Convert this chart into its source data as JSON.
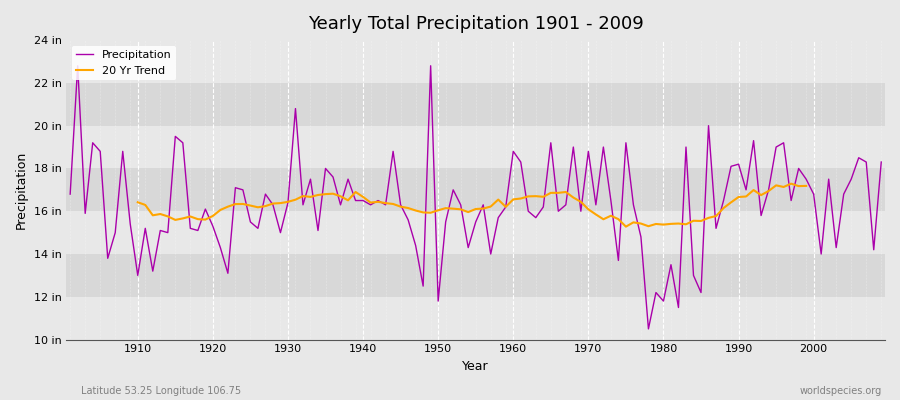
{
  "title": "Yearly Total Precipitation 1901 - 2009",
  "xlabel": "Year",
  "ylabel": "Precipitation",
  "years": [
    1901,
    1902,
    1903,
    1904,
    1905,
    1906,
    1907,
    1908,
    1909,
    1910,
    1911,
    1912,
    1913,
    1914,
    1915,
    1916,
    1917,
    1918,
    1919,
    1920,
    1921,
    1922,
    1923,
    1924,
    1925,
    1926,
    1927,
    1928,
    1929,
    1930,
    1931,
    1932,
    1933,
    1934,
    1935,
    1936,
    1937,
    1938,
    1939,
    1940,
    1941,
    1942,
    1943,
    1944,
    1945,
    1946,
    1947,
    1948,
    1949,
    1950,
    1951,
    1952,
    1953,
    1954,
    1955,
    1956,
    1957,
    1958,
    1959,
    1960,
    1961,
    1962,
    1963,
    1964,
    1965,
    1966,
    1967,
    1968,
    1969,
    1970,
    1971,
    1972,
    1973,
    1974,
    1975,
    1976,
    1977,
    1978,
    1979,
    1980,
    1981,
    1982,
    1983,
    1984,
    1985,
    1986,
    1987,
    1988,
    1989,
    1990,
    1991,
    1992,
    1993,
    1994,
    1995,
    1996,
    1997,
    1998,
    1999,
    2000,
    2001,
    2002,
    2003,
    2004,
    2005,
    2006,
    2007,
    2008,
    2009
  ],
  "precip_in": [
    16.8,
    22.8,
    15.9,
    19.2,
    18.8,
    13.8,
    15.0,
    18.8,
    15.4,
    13.0,
    15.2,
    13.2,
    15.1,
    15.0,
    19.5,
    19.2,
    15.2,
    15.1,
    16.1,
    15.3,
    14.3,
    13.1,
    17.1,
    17.0,
    15.5,
    15.2,
    16.8,
    16.3,
    15.0,
    16.4,
    20.8,
    16.3,
    17.5,
    15.1,
    18.0,
    17.6,
    16.3,
    17.5,
    16.5,
    16.5,
    16.3,
    16.5,
    16.3,
    18.8,
    16.3,
    15.6,
    14.4,
    12.5,
    22.8,
    11.8,
    15.5,
    17.0,
    16.3,
    14.3,
    15.5,
    16.3,
    14.0,
    15.7,
    16.2,
    18.8,
    18.3,
    16.0,
    15.7,
    16.2,
    19.2,
    16.0,
    16.3,
    19.0,
    16.0,
    18.8,
    16.3,
    19.0,
    16.5,
    13.7,
    19.2,
    16.3,
    14.8,
    10.5,
    12.2,
    11.8,
    13.5,
    11.5,
    19.0,
    13.0,
    12.2,
    20.0,
    15.2,
    16.5,
    18.1,
    18.2,
    17.0,
    19.3,
    15.8,
    17.0,
    19.0,
    19.2,
    16.5,
    18.0,
    17.5,
    16.8,
    14.0,
    17.5,
    14.3,
    16.8,
    17.5,
    18.5,
    18.3,
    14.2,
    18.3
  ],
  "ylim_min": 10,
  "ylim_max": 24,
  "yticks": [
    10,
    12,
    14,
    16,
    18,
    20,
    22,
    24
  ],
  "ytick_labels": [
    "10 in",
    "12 in",
    "14 in",
    "16 in",
    "18 in",
    "20 in",
    "22 in",
    "24 in"
  ],
  "precip_color": "#aa00aa",
  "trend_color": "#ffa500",
  "bg_color": "#e8e8e8",
  "plot_bg_color": "#e8e8e8",
  "grid_color": "#ffffff",
  "band_colors": [
    "#e0e0e0",
    "#d0d0d0"
  ],
  "legend_entries": [
    "Precipitation",
    "20 Yr Trend"
  ],
  "subtitle_left": "Latitude 53.25 Longitude 106.75",
  "subtitle_right": "worldspecies.org",
  "trend_window": 20
}
